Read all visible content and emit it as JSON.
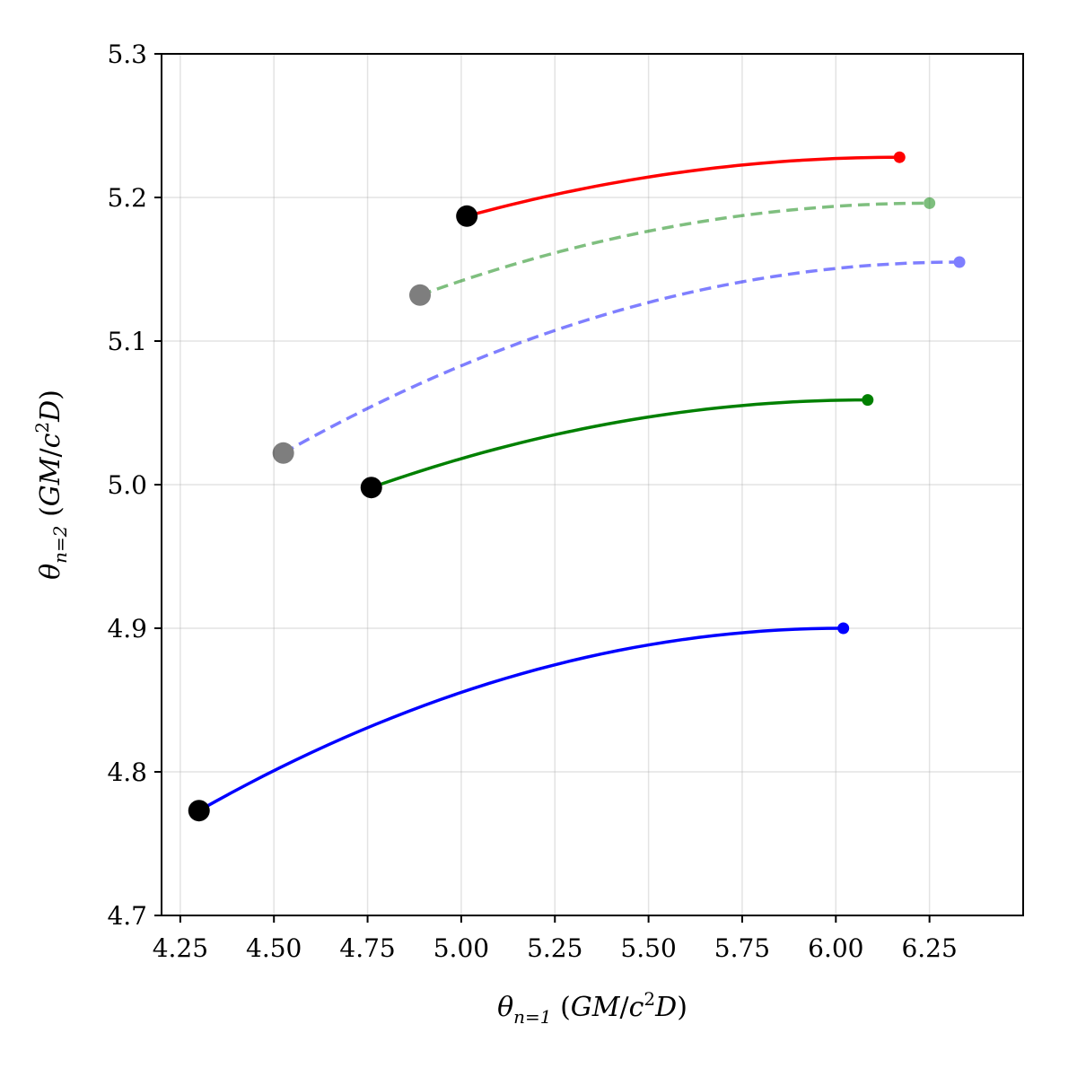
{
  "chart_data": {
    "type": "line",
    "xlabel": {
      "prefix": "θ",
      "sub": "n=1",
      "open": " (",
      "unit_a": "GM",
      "slash": "/",
      "unit_c": "c",
      "sup": "2",
      "unit_d": "D",
      "close": ")"
    },
    "ylabel": {
      "prefix": "θ",
      "sub": "n=2",
      "open": " (",
      "unit_a": "GM",
      "slash": "/",
      "unit_c": "c",
      "sup": "2",
      "unit_d": "D",
      "close": ")"
    },
    "xlim": [
      4.2,
      6.5
    ],
    "ylim": [
      4.7,
      5.3
    ],
    "xticks": [
      "4.25",
      "4.50",
      "4.75",
      "5.00",
      "5.25",
      "5.50",
      "5.75",
      "6.00",
      "6.25"
    ],
    "yticks": [
      "4.7",
      "4.8",
      "4.9",
      "5.0",
      "5.1",
      "5.2",
      "5.3"
    ],
    "grid": true,
    "series": [
      {
        "color": "#ff0000",
        "style": "solid",
        "opacity": 1.0,
        "start": [
          5.015,
          5.187
        ],
        "end": [
          6.17,
          5.228
        ]
      },
      {
        "color": "#008000",
        "style": "dashed",
        "opacity": 0.5,
        "start": [
          4.89,
          5.132
        ],
        "end": [
          6.25,
          5.196
        ]
      },
      {
        "color": "#0000ff",
        "style": "dashed",
        "opacity": 0.5,
        "start": [
          4.525,
          5.022
        ],
        "end": [
          6.33,
          5.155
        ]
      },
      {
        "color": "#008000",
        "style": "solid",
        "opacity": 1.0,
        "start": [
          4.76,
          4.998
        ],
        "end": [
          6.085,
          5.059
        ]
      },
      {
        "color": "#0000ff",
        "style": "solid",
        "opacity": 1.0,
        "start": [
          4.3,
          4.773
        ],
        "end": [
          6.02,
          4.9
        ]
      }
    ]
  }
}
